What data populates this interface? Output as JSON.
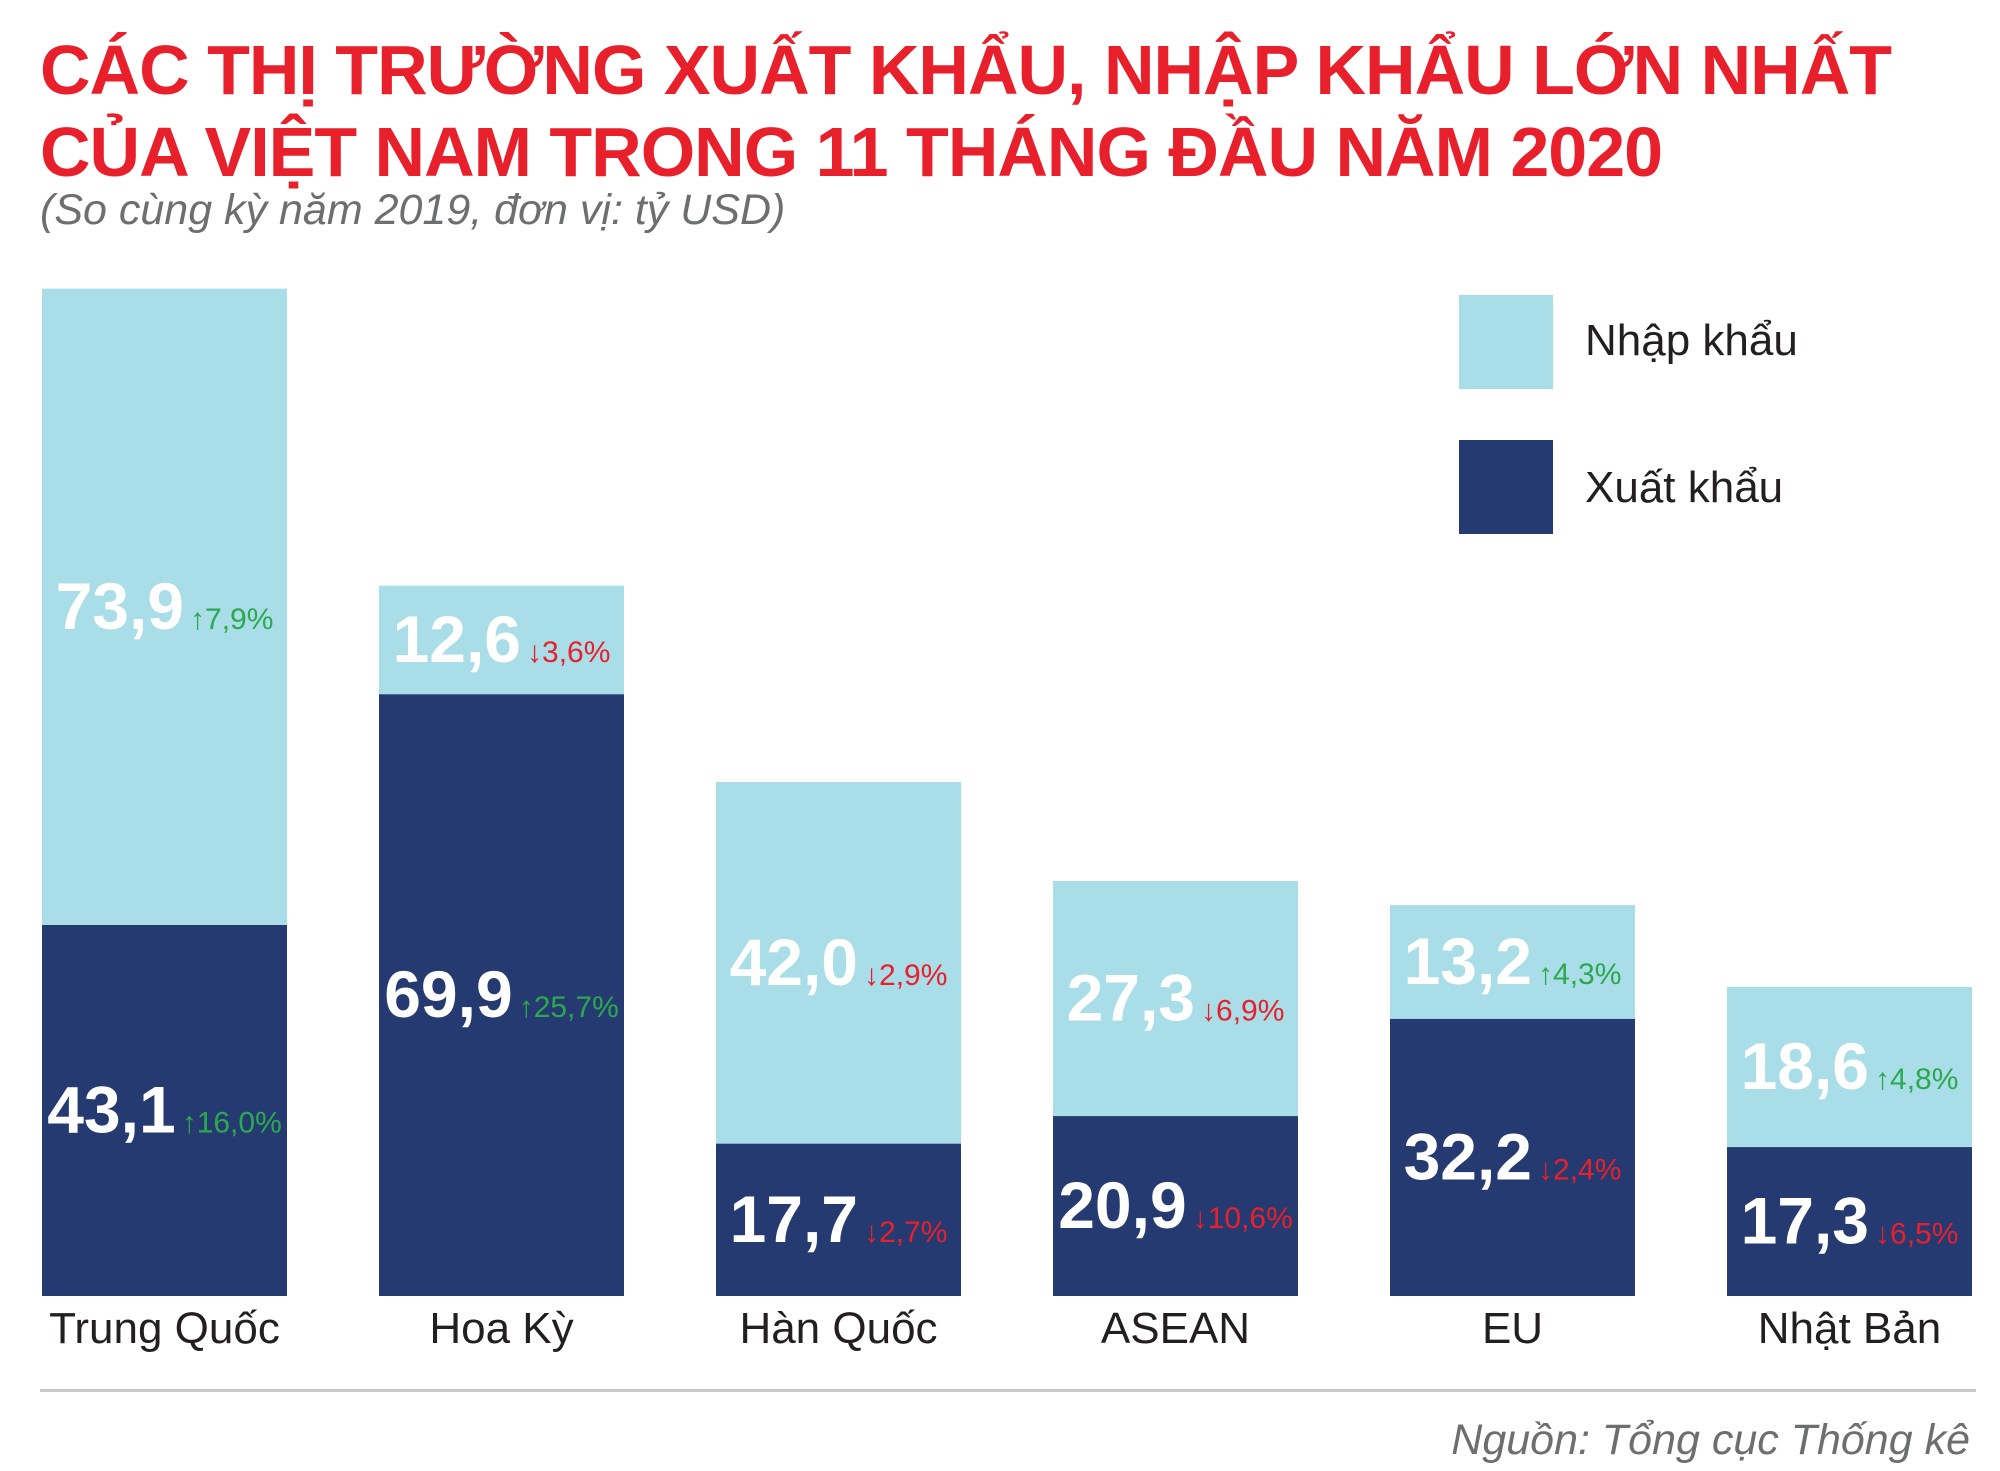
{
  "title_line1": "CÁC THỊ TRƯỜNG XUẤT KHẨU, NHẬP KHẨU LỚN NHẤT",
  "title_line2": "CỦA VIỆT NAM TRONG 11 THÁNG ĐẦU NĂM 2020",
  "subtitle": "(So cùng kỳ năm 2019, đơn vị: tỷ USD)",
  "source": "Nguồn: Tổng cục Thống kê",
  "colors": {
    "title": "#e8202b",
    "import": "#a9dde8",
    "export": "#253a70",
    "up": "#2ca94f",
    "down": "#e8202b"
  },
  "legend": {
    "import_label": "Nhập khẩu",
    "export_label": "Xuất khẩu",
    "placement": "top-right"
  },
  "chart_data": {
    "type": "bar",
    "stacked": true,
    "categories": [
      "Trung Quốc",
      "Hoa Kỳ",
      "Hàn Quốc",
      "ASEAN",
      "EU",
      "Nhật Bản"
    ],
    "series": [
      {
        "name": "Xuất khẩu",
        "values": [
          43.1,
          69.9,
          17.7,
          20.9,
          32.2,
          17.3
        ],
        "labels": [
          "43,1",
          "69,9",
          "17,7",
          "20,9",
          "32,2",
          "17,3"
        ],
        "changes": [
          "16,0%",
          "25,7%",
          "2,7%",
          "10,6%",
          "2,4%",
          "6,5%"
        ],
        "directions": [
          "up",
          "up",
          "down",
          "down",
          "down",
          "down"
        ]
      },
      {
        "name": "Nhập khẩu",
        "values": [
          73.9,
          12.6,
          42.0,
          27.3,
          13.2,
          18.6
        ],
        "labels": [
          "73,9",
          "12,6",
          "42,0",
          "27,3",
          "13,2",
          "18,6"
        ],
        "changes": [
          "7,9%",
          "3,6%",
          "2,9%",
          "6,9%",
          "4,3%",
          "4,8%"
        ],
        "directions": [
          "up",
          "down",
          "down",
          "down",
          "up",
          "up"
        ]
      }
    ],
    "ylim": [
      0,
      117
    ],
    "grid": false,
    "xlabel": "",
    "ylabel": ""
  }
}
